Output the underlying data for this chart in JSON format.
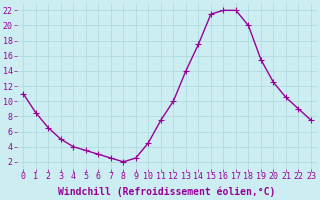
{
  "x": [
    0,
    1,
    2,
    3,
    4,
    5,
    6,
    7,
    8,
    9,
    10,
    11,
    12,
    13,
    14,
    15,
    16,
    17,
    18,
    19,
    20,
    21,
    22,
    23
  ],
  "y": [
    11,
    8.5,
    6.5,
    5.0,
    4.0,
    3.5,
    3.0,
    2.5,
    2.0,
    2.5,
    4.5,
    7.5,
    10.0,
    14.0,
    17.5,
    21.5,
    22.0,
    22.0,
    20.0,
    15.5,
    12.5,
    10.5,
    9.0,
    7.5
  ],
  "line_color": "#990099",
  "marker": "+",
  "marker_size": 4,
  "marker_linewidth": 0.8,
  "background_color": "#cceef2",
  "grid_color": "#aad8de",
  "xlabel": "Windchill (Refroidissement éolien,°C)",
  "xlabel_fontsize": 7,
  "ylabel_ticks": [
    2,
    4,
    6,
    8,
    10,
    12,
    14,
    16,
    18,
    20,
    22
  ],
  "xlim": [
    -0.5,
    23.5
  ],
  "ylim": [
    1.0,
    23.0
  ],
  "xtick_labels": [
    "0",
    "1",
    "2",
    "3",
    "4",
    "5",
    "6",
    "7",
    "8",
    "9",
    "10",
    "11",
    "12",
    "13",
    "14",
    "15",
    "16",
    "17",
    "18",
    "19",
    "20",
    "21",
    "22",
    "23"
  ],
  "tick_fontsize": 6,
  "line_width": 1.0,
  "fig_width": 3.2,
  "fig_height": 2.0,
  "dpi": 100
}
